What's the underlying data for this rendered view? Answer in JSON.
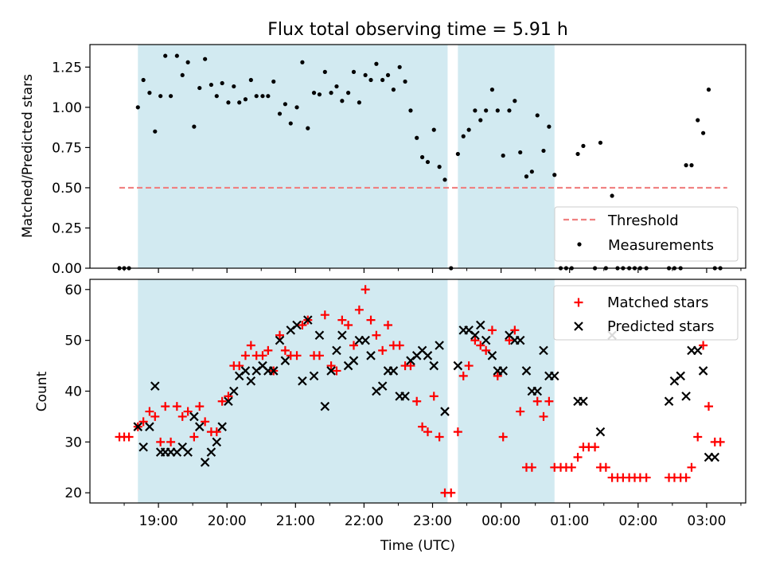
{
  "chart_data": [
    {
      "type": "scatter",
      "panel": "top",
      "title": "Flux total observing time = 5.91 h",
      "ylabel": "Matched/Predicted stars",
      "ylim": [
        0,
        1.39
      ],
      "yticks": [
        0.0,
        0.25,
        0.5,
        0.75,
        1.0,
        1.25
      ],
      "ytick_labels": [
        "0.00",
        "0.25",
        "0.50",
        "0.75",
        "1.00",
        "1.25"
      ],
      "shaded_windows": [
        [
          18.7,
          23.22
        ],
        [
          23.37,
          24.78
        ]
      ],
      "shade_color": "#add8e6",
      "threshold": {
        "name": "Threshold",
        "value": 0.5,
        "x": [
          18.43,
          27.3
        ],
        "color": "#f08080"
      },
      "series": [
        {
          "name": "Measurements",
          "color": "#000000",
          "x": [
            18.43,
            18.5,
            18.57,
            18.7,
            18.78,
            18.87,
            18.95,
            19.03,
            19.1,
            19.18,
            19.27,
            19.35,
            19.43,
            19.52,
            19.6,
            19.68,
            19.77,
            19.85,
            19.93,
            20.02,
            20.1,
            20.18,
            20.27,
            20.35,
            20.43,
            20.52,
            20.6,
            20.68,
            20.77,
            20.85,
            20.93,
            21.02,
            21.1,
            21.18,
            21.27,
            21.35,
            21.43,
            21.52,
            21.6,
            21.68,
            21.77,
            21.85,
            21.93,
            22.02,
            22.1,
            22.18,
            22.27,
            22.35,
            22.43,
            22.52,
            22.6,
            22.68,
            22.77,
            22.85,
            22.93,
            23.02,
            23.1,
            23.18,
            23.27,
            23.37,
            23.45,
            23.53,
            23.62,
            23.7,
            23.78,
            23.87,
            23.95,
            24.03,
            24.12,
            24.2,
            24.28,
            24.37,
            24.45,
            24.53,
            24.62,
            24.7,
            24.78,
            24.87,
            24.95,
            25.03,
            25.12,
            25.2,
            25.37,
            25.45,
            25.53,
            25.62,
            25.7,
            25.78,
            25.87,
            25.95,
            26.03,
            26.12,
            26.45,
            26.53,
            26.62,
            26.7,
            26.78,
            26.87,
            26.95,
            27.03,
            27.12,
            27.2
          ],
          "y": [
            0,
            0,
            0,
            1.0,
            1.17,
            1.09,
            0.85,
            1.07,
            1.32,
            1.07,
            1.32,
            1.2,
            1.28,
            0.88,
            1.12,
            1.3,
            1.14,
            1.07,
            1.15,
            1.03,
            1.13,
            1.03,
            1.05,
            1.17,
            1.07,
            1.07,
            1.07,
            1.16,
            0.96,
            1.02,
            0.9,
            1.0,
            1.28,
            0.87,
            1.09,
            1.08,
            1.22,
            1.09,
            1.13,
            1.04,
            1.09,
            1.22,
            1.03,
            1.2,
            1.17,
            1.27,
            1.17,
            1.2,
            1.11,
            1.25,
            1.16,
            0.98,
            0.81,
            0.69,
            0.66,
            0.86,
            0.63,
            0.55,
            0,
            0.71,
            0.82,
            0.86,
            0.98,
            0.92,
            0.98,
            1.11,
            0.98,
            0.7,
            0.98,
            1.04,
            0.72,
            0.57,
            0.6,
            0.95,
            0.73,
            0.88,
            0.58,
            0,
            0,
            0,
            0.71,
            0.76,
            0,
            0.78,
            0,
            0.45,
            0,
            0,
            0,
            0,
            0,
            0,
            0,
            0,
            0,
            0.64,
            0.64,
            0.92,
            0.84,
            1.11,
            0,
            0
          ],
          "marker": "dot"
        }
      ],
      "legend": {
        "placement": "lower-right",
        "entries": [
          "Threshold",
          "Measurements"
        ]
      }
    },
    {
      "type": "scatter",
      "panel": "bottom",
      "xlabel": "Time (UTC)",
      "ylabel": "Count",
      "xlim": [
        18.0,
        27.57
      ],
      "ylim": [
        18,
        62
      ],
      "yticks": [
        20,
        30,
        40,
        50,
        60
      ],
      "ytick_labels": [
        "20",
        "30",
        "40",
        "50",
        "60"
      ],
      "xticks": [
        19,
        20,
        21,
        22,
        23,
        24,
        25,
        26,
        27
      ],
      "xtick_labels": [
        "19:00",
        "20:00",
        "21:00",
        "22:00",
        "23:00",
        "00:00",
        "01:00",
        "02:00",
        "03:00"
      ],
      "shaded_windows": [
        [
          18.7,
          23.22
        ],
        [
          23.37,
          24.78
        ]
      ],
      "series": [
        {
          "name": "Matched stars",
          "color": "#ff0000",
          "marker": "plus",
          "x": [
            18.43,
            18.5,
            18.57,
            18.7,
            18.78,
            18.87,
            18.95,
            19.03,
            19.1,
            19.18,
            19.27,
            19.35,
            19.43,
            19.52,
            19.6,
            19.68,
            19.77,
            19.85,
            19.93,
            20.02,
            20.1,
            20.18,
            20.27,
            20.35,
            20.43,
            20.52,
            20.6,
            20.68,
            20.77,
            20.85,
            20.93,
            21.02,
            21.1,
            21.18,
            21.27,
            21.35,
            21.43,
            21.52,
            21.6,
            21.68,
            21.77,
            21.85,
            21.93,
            22.02,
            22.1,
            22.18,
            22.27,
            22.35,
            22.43,
            22.52,
            22.6,
            22.68,
            22.77,
            22.85,
            22.93,
            23.02,
            23.1,
            23.18,
            23.27,
            23.37,
            23.45,
            23.53,
            23.62,
            23.7,
            23.78,
            23.87,
            23.95,
            24.03,
            24.12,
            24.2,
            24.28,
            24.37,
            24.45,
            24.53,
            24.62,
            24.7,
            24.78,
            24.87,
            24.95,
            25.03,
            25.12,
            25.2,
            25.28,
            25.37,
            25.45,
            25.53,
            25.62,
            25.7,
            25.78,
            25.87,
            25.95,
            26.03,
            26.12,
            26.45,
            26.53,
            26.62,
            26.7,
            26.78,
            26.87,
            26.95,
            27.03,
            27.12,
            27.2
          ],
          "y": [
            31,
            31,
            31,
            33,
            34,
            36,
            35,
            30,
            37,
            30,
            37,
            35,
            36,
            31,
            37,
            34,
            32,
            32,
            38,
            39,
            45,
            45,
            47,
            49,
            47,
            47,
            48,
            44,
            51,
            48,
            47,
            47,
            53,
            54,
            47,
            47,
            55,
            45,
            44,
            54,
            53,
            49,
            56,
            60,
            54,
            51,
            48,
            53,
            49,
            49,
            45,
            45,
            38,
            33,
            32,
            39,
            31,
            20,
            20,
            32,
            43,
            45,
            50,
            49,
            48,
            52,
            43,
            31,
            50,
            52,
            36,
            25,
            25,
            38,
            35,
            38,
            25,
            25,
            25,
            25,
            27,
            29,
            29,
            29,
            25,
            25,
            23,
            23,
            23,
            23,
            23,
            23,
            23,
            23,
            23,
            23,
            23,
            25,
            31,
            49,
            37,
            30,
            30
          ]
        },
        {
          "name": "Predicted stars",
          "color": "#000000",
          "marker": "x",
          "x": [
            18.7,
            18.78,
            18.87,
            18.95,
            19.03,
            19.1,
            19.18,
            19.27,
            19.35,
            19.43,
            19.52,
            19.6,
            19.68,
            19.77,
            19.85,
            19.93,
            20.02,
            20.1,
            20.18,
            20.27,
            20.35,
            20.43,
            20.52,
            20.6,
            20.68,
            20.77,
            20.85,
            20.93,
            21.02,
            21.1,
            21.18,
            21.27,
            21.35,
            21.43,
            21.52,
            21.6,
            21.68,
            21.77,
            21.85,
            21.93,
            22.02,
            22.1,
            22.18,
            22.27,
            22.35,
            22.43,
            22.52,
            22.6,
            22.68,
            22.77,
            22.85,
            22.93,
            23.02,
            23.1,
            23.18,
            23.37,
            23.45,
            23.53,
            23.62,
            23.7,
            23.78,
            23.87,
            23.95,
            24.03,
            24.12,
            24.2,
            24.28,
            24.37,
            24.45,
            24.53,
            24.62,
            24.7,
            24.78,
            25.12,
            25.2,
            25.45,
            25.62,
            26.45,
            26.53,
            26.62,
            26.7,
            26.78,
            26.87,
            26.95,
            27.03,
            27.12
          ],
          "y": [
            33,
            29,
            33,
            41,
            28,
            28,
            28,
            28,
            29,
            28,
            35,
            33,
            26,
            28,
            30,
            33,
            38,
            40,
            43,
            44,
            42,
            44,
            45,
            44,
            44,
            50,
            46,
            52,
            53,
            42,
            54,
            43,
            51,
            37,
            44,
            48,
            51,
            45,
            46,
            50,
            50,
            47,
            40,
            41,
            44,
            44,
            39,
            39,
            46,
            47,
            48,
            47,
            45,
            49,
            36,
            45,
            52,
            52,
            51,
            53,
            50,
            47,
            44,
            44,
            51,
            50,
            50,
            44,
            40,
            40,
            48,
            43,
            43,
            38,
            38,
            32,
            51,
            38,
            42,
            43,
            39,
            48,
            48,
            44,
            27,
            27
          ]
        }
      ],
      "legend": {
        "placement": "top-right",
        "entries": [
          "Matched stars",
          "Predicted stars"
        ]
      }
    }
  ]
}
